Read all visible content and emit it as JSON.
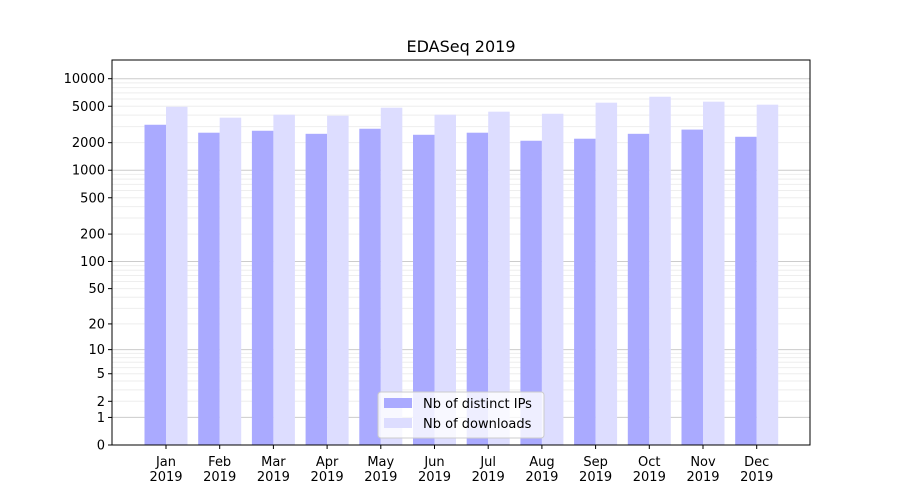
{
  "chart_data": {
    "type": "bar",
    "title": "EDASeq 2019",
    "xlabel": "",
    "ylabel": "",
    "yscale": "log10(y+1)",
    "ylim": [
      0,
      16000
    ],
    "grid": true,
    "yticks": [
      0,
      1,
      2,
      5,
      10,
      20,
      50,
      100,
      200,
      500,
      1000,
      2000,
      5000,
      10000
    ],
    "categories": [
      "Jan\n2019",
      "Feb\n2019",
      "Mar\n2019",
      "Apr\n2019",
      "May\n2019",
      "Jun\n2019",
      "Jul\n2019",
      "Aug\n2019",
      "Sep\n2019",
      "Oct\n2019",
      "Nov\n2019",
      "Dec\n2019"
    ],
    "series": [
      {
        "name": "Nb of distinct IPs",
        "color": "#aaaaff",
        "values": [
          3140,
          2570,
          2700,
          2500,
          2840,
          2440,
          2570,
          2100,
          2210,
          2500,
          2780,
          2320
        ]
      },
      {
        "name": "Nb of downloads",
        "color": "#ddddff",
        "values": [
          4940,
          3750,
          4040,
          3940,
          4820,
          4040,
          4360,
          4140,
          5470,
          6350,
          5610,
          5200
        ]
      }
    ],
    "legend": "bottom-center"
  }
}
